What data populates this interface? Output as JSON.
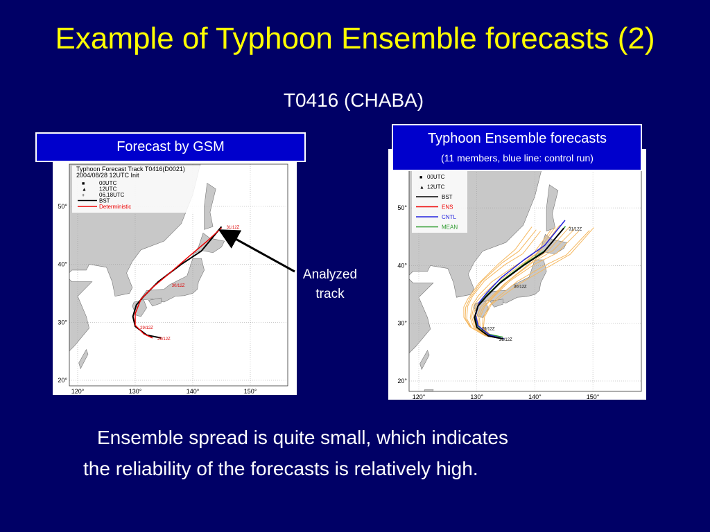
{
  "title": "Example of Typhoon Ensemble forecasts (2)",
  "subtitle": "T0416 (CHABA)",
  "left_panel": {
    "label": "Forecast by GSM",
    "map": {
      "header": [
        "Typhoon Forecast Track T0416(D0021)",
        "2004/08/28 12UTC Init"
      ],
      "legend": [
        "00UTC",
        "12UTC",
        "06,18UTC",
        "BST",
        "Deterministic"
      ],
      "lat_labels": [
        "50°",
        "40°",
        "30°",
        "20°"
      ],
      "lon_labels": [
        "120°",
        "130°",
        "140°",
        "150°"
      ],
      "track_labels": [
        "31/12Z",
        "30/12Z",
        "29/12Z",
        "28/12Z"
      ]
    }
  },
  "right_panel": {
    "label": "Typhoon Ensemble forecasts",
    "sublabel": "(11 members, blue line: control run)",
    "map": {
      "legend": [
        "00UTC",
        "12UTC",
        "BST",
        "ENS",
        "CNTL",
        "MEAN"
      ],
      "lat_labels": [
        "50°",
        "40°",
        "30°",
        "20°"
      ],
      "lon_labels": [
        "120°",
        "130°",
        "140°",
        "150°"
      ],
      "track_labels": [
        "31/12Z",
        "30/12Z",
        "29/12Z",
        "28/12Z"
      ]
    }
  },
  "annotation": [
    "Analyzed",
    "track"
  ],
  "body": [
    "Ensemble spread is quite small, which indicates",
    "the reliability of the forecasts is relatively high."
  ]
}
